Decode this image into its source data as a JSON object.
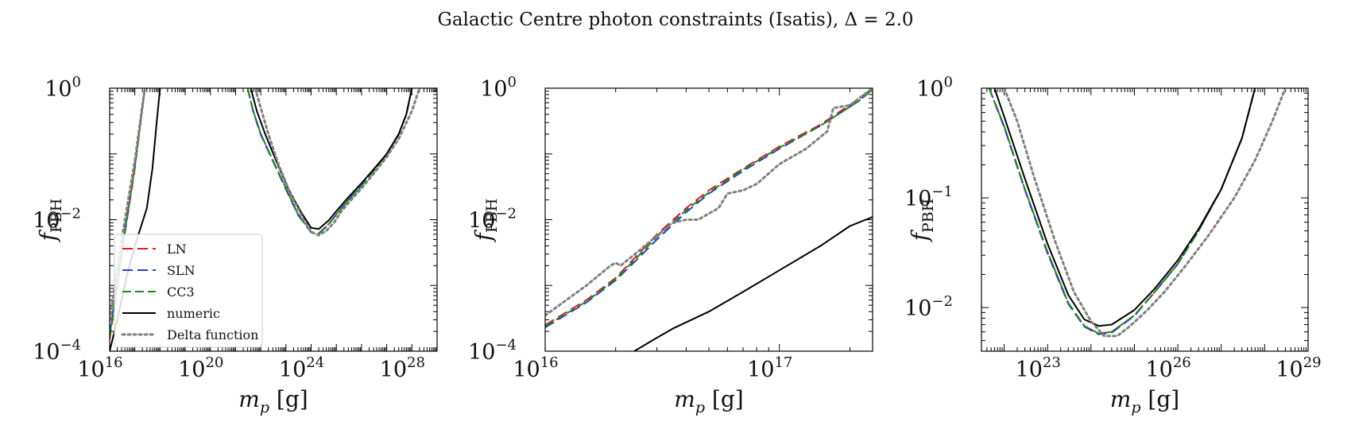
{
  "figure": {
    "title": "Galactic Centre photon constraints (Isatis), Δ = 2.0"
  },
  "colors": {
    "LN": "#e31a1c",
    "SLN": "#1f3fd6",
    "CC3": "#1a8a1a",
    "numeric": "#000000",
    "Delta function": "#808080"
  },
  "legend": {
    "placement": "lower-left of first panel",
    "entries": [
      {
        "label": "LN",
        "style": "dashed",
        "color": "#e31a1c"
      },
      {
        "label": "SLN",
        "style": "dashed",
        "color": "#1f3fd6"
      },
      {
        "label": "CC3",
        "style": "dashed",
        "color": "#1a8a1a"
      },
      {
        "label": "numeric",
        "style": "solid",
        "color": "#000000"
      },
      {
        "label": "Delta function",
        "style": "dotted",
        "color": "#808080"
      }
    ]
  },
  "chart_data": [
    {
      "type": "line",
      "xlabel": "m_p [g]",
      "ylabel": "f_PBH",
      "xscale": "log",
      "yscale": "log",
      "xlim": [
        1e+16,
        1e+29
      ],
      "ylim": [
        0.0001,
        1
      ],
      "xticks": [
        {
          "value": 1e+16,
          "base": "10",
          "exp": "16"
        },
        {
          "value": 1e+20,
          "base": "10",
          "exp": "20"
        },
        {
          "value": 1e+24,
          "base": "10",
          "exp": "24"
        },
        {
          "value": 1e+28,
          "base": "10",
          "exp": "28"
        }
      ],
      "yticks": [
        {
          "value": 0.0001,
          "base": "10",
          "exp": "−4"
        },
        {
          "value": 0.01,
          "base": "10",
          "exp": "−2"
        },
        {
          "value": 1,
          "base": "10",
          "exp": "0"
        }
      ],
      "series": [
        {
          "name": "LN",
          "x": [
            1e+16,
            3e+16,
            1e+17,
            2e+17,
            2.5e+17
          ],
          "y": [
            0.00015,
            0.003,
            0.06,
            0.5,
            1.0
          ]
        },
        {
          "name": "LN",
          "x": [
            3e+21,
            5e+21,
            1e+22,
            3e+22,
            1e+23,
            3e+23,
            1e+24,
            2e+24,
            5e+24,
            1e+25,
            3e+25,
            1e+26,
            3e+26,
            1e+27,
            3e+27,
            6e+27,
            1e+28
          ],
          "y": [
            1.0,
            0.45,
            0.2,
            0.08,
            0.03,
            0.012,
            0.0065,
            0.0062,
            0.0085,
            0.012,
            0.02,
            0.033,
            0.055,
            0.1,
            0.2,
            0.4,
            1.0
          ]
        },
        {
          "name": "SLN",
          "x": [
            1e+16,
            3e+16,
            1e+17,
            2e+17,
            2.5e+17
          ],
          "y": [
            0.00018,
            0.0033,
            0.065,
            0.52,
            1.0
          ]
        },
        {
          "name": "SLN",
          "x": [
            3e+21,
            5e+21,
            1e+22,
            3e+22,
            1e+23,
            3e+23,
            1e+24,
            2e+24,
            5e+24,
            1e+25,
            3e+25,
            1e+26,
            3e+26,
            1e+27,
            3e+27,
            6e+27,
            1e+28
          ],
          "y": [
            1.0,
            0.44,
            0.195,
            0.078,
            0.029,
            0.0118,
            0.0064,
            0.0061,
            0.0085,
            0.012,
            0.02,
            0.033,
            0.055,
            0.1,
            0.2,
            0.4,
            1.0
          ]
        },
        {
          "name": "CC3",
          "x": [
            1e+16,
            3e+16,
            1e+17,
            2e+17,
            2.5e+17
          ],
          "y": [
            0.00017,
            0.0032,
            0.063,
            0.5,
            1.0
          ]
        },
        {
          "name": "CC3",
          "x": [
            3e+21,
            5e+21,
            1e+22,
            3e+22,
            1e+23,
            3e+23,
            1e+24,
            2e+24,
            5e+24,
            1e+25,
            3e+25,
            1e+26,
            3e+26,
            1e+27,
            3e+27,
            6e+27,
            1e+28
          ],
          "y": [
            1.0,
            0.45,
            0.2,
            0.08,
            0.03,
            0.012,
            0.0065,
            0.0062,
            0.0086,
            0.012,
            0.02,
            0.033,
            0.055,
            0.1,
            0.2,
            0.4,
            1.0
          ]
        },
        {
          "name": "numeric",
          "x": [
            1e+16,
            2e+16,
            5e+16,
            1e+17,
            3e+17,
            5e+17,
            7e+17,
            1e+18
          ],
          "y": [
            0.0001,
            0.0003,
            0.0015,
            0.004,
            0.015,
            0.06,
            0.25,
            1.0
          ]
        },
        {
          "name": "numeric",
          "x": [
            4e+21,
            7e+21,
            1.5e+22,
            4e+22,
            1.2e+23,
            4e+23,
            1e+24,
            2e+24,
            5e+24,
            1e+25,
            3e+25,
            1e+26,
            3e+26,
            1e+27,
            3e+27,
            6e+27,
            1e+28
          ],
          "y": [
            1.0,
            0.45,
            0.2,
            0.08,
            0.03,
            0.013,
            0.0075,
            0.0072,
            0.0098,
            0.0135,
            0.022,
            0.036,
            0.058,
            0.1,
            0.2,
            0.4,
            1.0
          ]
        },
        {
          "name": "Delta function",
          "x": [
            1e+16,
            3e+16,
            1e+17,
            2e+17,
            2.5e+17
          ],
          "y": [
            0.0003,
            0.005,
            0.08,
            0.55,
            1.0
          ]
        },
        {
          "name": "Delta function",
          "x": [
            6e+21,
            1e+22,
            2e+22,
            5e+22,
            1.5e+23,
            5e+23,
            1e+24,
            2e+24,
            4e+24,
            8e+24,
            1.5e+25,
            3e+25,
            1e+26,
            3e+26,
            1e+27,
            3e+27,
            1e+28,
            2e+28
          ],
          "y": [
            1.0,
            0.5,
            0.2,
            0.07,
            0.025,
            0.01,
            0.0065,
            0.0058,
            0.0068,
            0.009,
            0.013,
            0.018,
            0.03,
            0.05,
            0.09,
            0.17,
            0.45,
            1.0
          ]
        }
      ]
    },
    {
      "type": "line",
      "xlabel": "m_p [g]",
      "ylabel": "f_PBH",
      "xscale": "log",
      "yscale": "log",
      "xlim": [
        1e+16,
        2.5e+17
      ],
      "ylim": [
        0.0001,
        1
      ],
      "xticks": [
        {
          "value": 1e+16,
          "base": "10",
          "exp": "16"
        },
        {
          "value": 1e+17,
          "base": "10",
          "exp": "17"
        }
      ],
      "yticks": [
        {
          "value": 0.0001,
          "base": "10",
          "exp": "−4"
        },
        {
          "value": 0.01,
          "base": "10",
          "exp": "−2"
        },
        {
          "value": 1,
          "base": "10",
          "exp": "0"
        }
      ],
      "series": [
        {
          "name": "LN",
          "x": [
            1e+16,
            1.5e+16,
            2e+16,
            2.5e+16,
            3e+16,
            4e+16,
            5e+16,
            7e+16,
            1e+17,
            1.5e+17,
            2.2e+17,
            2.5e+17
          ],
          "y": [
            0.00025,
            0.0006,
            0.0013,
            0.003,
            0.006,
            0.015,
            0.028,
            0.06,
            0.13,
            0.28,
            0.7,
            1.0
          ]
        },
        {
          "name": "SLN",
          "x": [
            1e+16,
            1.5e+16,
            2e+16,
            2.5e+16,
            3e+16,
            4e+16,
            5e+16,
            7e+16,
            1e+17,
            1.5e+17,
            2.2e+17,
            2.5e+17
          ],
          "y": [
            0.00023,
            0.00055,
            0.0012,
            0.0026,
            0.005,
            0.013,
            0.025,
            0.055,
            0.12,
            0.27,
            0.65,
            1.0
          ]
        },
        {
          "name": "CC3",
          "x": [
            1e+16,
            1.5e+16,
            2e+16,
            2.5e+16,
            3e+16,
            4e+16,
            5e+16,
            7e+16,
            1e+17,
            1.5e+17,
            2.2e+17,
            2.5e+17
          ],
          "y": [
            0.00024,
            0.00057,
            0.00125,
            0.0028,
            0.0055,
            0.014,
            0.026,
            0.058,
            0.125,
            0.27,
            0.65,
            0.95
          ]
        },
        {
          "name": "numeric",
          "x": [
            2.4e+16,
            3e+16,
            3.5e+16,
            5e+16,
            7e+16,
            1e+17,
            1.5e+17,
            2e+17,
            2.5e+17
          ],
          "y": [
            0.0001,
            0.00016,
            0.00022,
            0.0004,
            0.0008,
            0.0017,
            0.004,
            0.008,
            0.011
          ]
        },
        {
          "name": "Delta function",
          "x": [
            1e+16,
            1.5e+16,
            1.9e+16,
            2e+16,
            2.1e+16,
            2.5e+16,
            3.5e+16,
            4e+16,
            4.5e+16,
            5.5e+16,
            6e+16,
            7e+16,
            8e+16,
            1e+17,
            1.3e+17,
            1.6e+17,
            1.7e+17,
            2e+17,
            2.5e+17
          ],
          "y": [
            0.00035,
            0.001,
            0.002,
            0.0022,
            0.002,
            0.0033,
            0.009,
            0.01,
            0.01,
            0.015,
            0.025,
            0.028,
            0.035,
            0.07,
            0.12,
            0.22,
            0.5,
            0.55,
            1.0
          ]
        }
      ]
    },
    {
      "type": "line",
      "xlabel": "m_p [g]",
      "ylabel": "f_PBH",
      "xscale": "log",
      "yscale": "log",
      "xlim": [
        3e+21,
        1e+29
      ],
      "ylim": [
        0.004,
        1
      ],
      "xticks": [
        {
          "value": 1e+23,
          "base": "10",
          "exp": "23"
        },
        {
          "value": 1e+26,
          "base": "10",
          "exp": "26"
        },
        {
          "value": 1e+29,
          "base": "10",
          "exp": "29"
        }
      ],
      "yticks": [
        {
          "value": 0.01,
          "base": "10",
          "exp": "−2"
        },
        {
          "value": 0.1,
          "base": "10",
          "exp": "−1"
        },
        {
          "value": 1,
          "base": "10",
          "exp": "0"
        }
      ],
      "series": [
        {
          "name": "LN",
          "x": [
            4.5e+21,
            1e+22,
            3e+22,
            1e+23,
            3e+23,
            7e+23,
            1.5e+24,
            3e+24,
            1e+25,
            3e+25,
            1e+26,
            3e+26,
            1e+27,
            3e+27,
            6e+27
          ],
          "y": [
            1.0,
            0.45,
            0.12,
            0.032,
            0.011,
            0.0068,
            0.0058,
            0.006,
            0.0085,
            0.014,
            0.025,
            0.05,
            0.12,
            0.35,
            1.0
          ]
        },
        {
          "name": "SLN",
          "x": [
            4.5e+21,
            1e+22,
            3e+22,
            1e+23,
            3e+23,
            7e+23,
            1.5e+24,
            3e+24,
            1e+25,
            3e+25,
            1e+26,
            3e+26,
            1e+27,
            3e+27,
            6e+27
          ],
          "y": [
            1.0,
            0.44,
            0.118,
            0.031,
            0.0108,
            0.0067,
            0.0057,
            0.0059,
            0.0084,
            0.014,
            0.025,
            0.05,
            0.12,
            0.35,
            1.0
          ]
        },
        {
          "name": "CC3",
          "x": [
            4.5e+21,
            1e+22,
            3e+22,
            1e+23,
            3e+23,
            7e+23,
            1.5e+24,
            3e+24,
            1e+25,
            3e+25,
            1e+26,
            3e+26,
            1e+27,
            3e+27,
            6e+27
          ],
          "y": [
            1.0,
            0.45,
            0.12,
            0.032,
            0.011,
            0.0068,
            0.0058,
            0.006,
            0.0085,
            0.014,
            0.025,
            0.05,
            0.12,
            0.35,
            1.0
          ]
        },
        {
          "name": "numeric",
          "x": [
            6e+21,
            1e+22,
            3e+22,
            1e+23,
            3e+23,
            7e+23,
            1.5e+24,
            3e+24,
            1e+25,
            3e+25,
            1e+26,
            3e+26,
            1e+27,
            3e+27,
            6e+27
          ],
          "y": [
            1.0,
            0.55,
            0.15,
            0.038,
            0.013,
            0.0078,
            0.0068,
            0.007,
            0.0095,
            0.015,
            0.027,
            0.052,
            0.12,
            0.35,
            1.0
          ]
        },
        {
          "name": "Delta function",
          "x": [
            1e+22,
            2e+22,
            5e+22,
            1.5e+23,
            4e+23,
            1e+24,
            2e+24,
            4e+24,
            8e+24,
            2e+25,
            5e+25,
            1.5e+26,
            5e+26,
            2e+27,
            6e+27,
            1.5e+28,
            3e+28
          ],
          "y": [
            1.0,
            0.5,
            0.15,
            0.04,
            0.014,
            0.0075,
            0.0055,
            0.0055,
            0.0068,
            0.0095,
            0.014,
            0.024,
            0.045,
            0.1,
            0.22,
            0.5,
            1.0
          ]
        }
      ]
    }
  ]
}
